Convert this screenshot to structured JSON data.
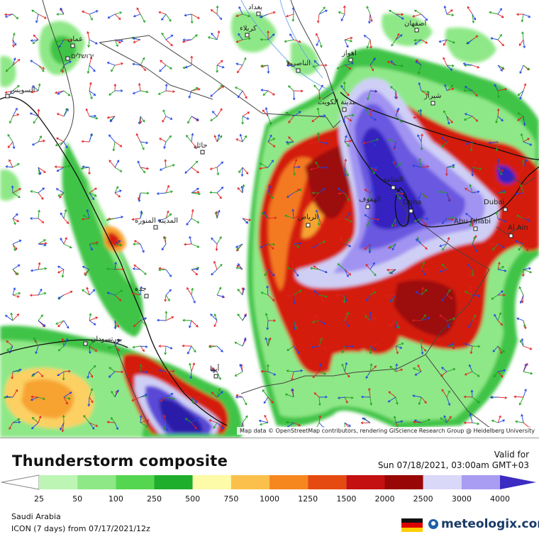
{
  "map": {
    "attribution": "Map data © OpenStreetMap contributors, rendering GIScience Research Group @ Heidelberg University",
    "cities": [
      {
        "name": "Doha"
      },
      {
        "name": "Dubai"
      },
      {
        "name": "Abu Dhabi"
      },
      {
        "name": "Al Ain"
      },
      {
        "name": "الرياض"
      },
      {
        "name": "المنامة"
      },
      {
        "name": "الهفوف"
      },
      {
        "name": "مدينة الكويت"
      },
      {
        "name": "الناصرية"
      },
      {
        "name": "بغداد"
      },
      {
        "name": "كربلاء"
      },
      {
        "name": "اصفهان"
      },
      {
        "name": "شيراز"
      },
      {
        "name": "اهواز"
      },
      {
        "name": "حائل"
      },
      {
        "name": "المدينة المنورة"
      },
      {
        "name": "جدة"
      },
      {
        "name": "بورتسودان"
      },
      {
        "name": "أبها"
      },
      {
        "name": "عمان"
      },
      {
        "name": "السويس"
      },
      {
        "name": "ירושלים"
      }
    ]
  },
  "title": "Thunderstorm composite",
  "valid_label": "Valid for",
  "valid_time": "Sun 07/18/2021, 03:00am GMT+03",
  "legend": {
    "ticks": [
      "25",
      "50",
      "100",
      "250",
      "500",
      "750",
      "1000",
      "1250",
      "1500",
      "2000",
      "2500",
      "3000",
      "4000"
    ],
    "colors": [
      "#ffffff",
      "#bdf5b5",
      "#8ee886",
      "#55d650",
      "#1fae2c",
      "#fdfaa8",
      "#fbc04c",
      "#f6871e",
      "#e54a10",
      "#c41010",
      "#980606",
      "#d9d8f8",
      "#a99cf3",
      "#7360e6",
      "#3c2cc2"
    ]
  },
  "region": "Saudi Arabia",
  "model_run": "ICON (7 days) from 07/17/2021/12z",
  "brand": "meteologix.com",
  "flag_colors": [
    "#111111",
    "#dd0000",
    "#ffce00"
  ]
}
